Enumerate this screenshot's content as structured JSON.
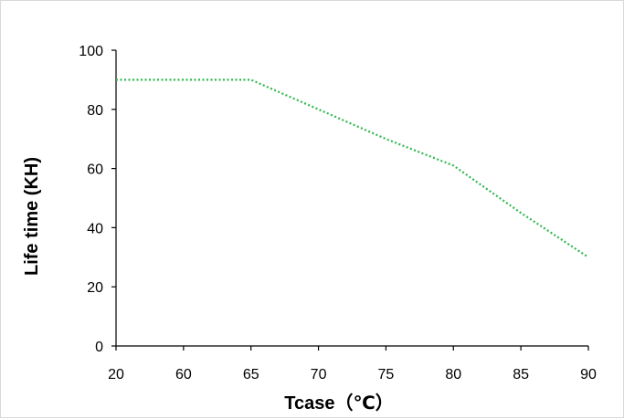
{
  "chart_data": {
    "type": "line",
    "title": "",
    "xlabel": "Tcase（℃）",
    "ylabel": "Life time (KH)",
    "categories": [
      "20",
      "60",
      "65",
      "70",
      "75",
      "80",
      "85",
      "90"
    ],
    "series": [
      {
        "values": [
          90,
          90,
          90,
          80,
          70,
          61,
          45,
          30
        ],
        "color": "#2db84d",
        "line_style": "dotted"
      }
    ],
    "ylim": [
      0,
      100
    ],
    "yticks": [
      0,
      20,
      40,
      60,
      80,
      100
    ],
    "grid": false,
    "legend": "none"
  }
}
